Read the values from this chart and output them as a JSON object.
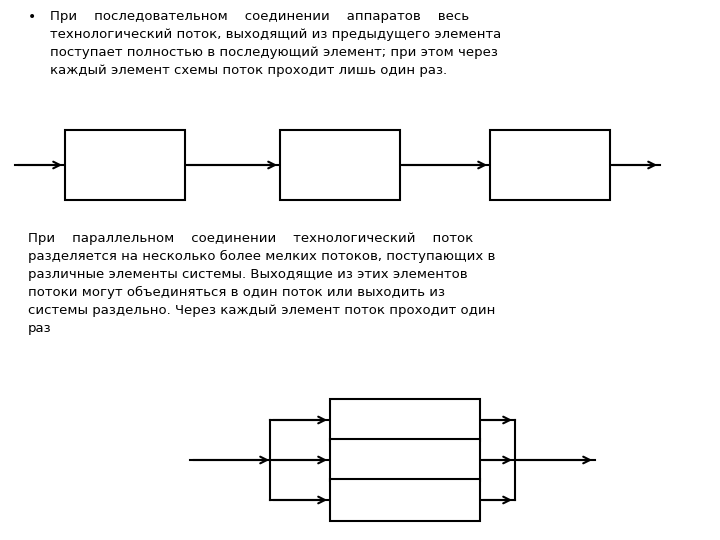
{
  "background_color": "#ffffff",
  "line_color": "#000000",
  "box_edge_color": "#000000",
  "box_face_color": "#ffffff",
  "fontsize_text": 9.5,
  "text1_line1": "При    последовательном    соединении    аппаратов    весь",
  "text1_line2": "технологический поток, выходящий из предыдущего элемента",
  "text1_line3": "поступает полностью в последующий элемент; при этом через",
  "text1_line4": "каждый элемент схемы поток проходит лишь один раз.",
  "text2_line1": "При    параллельном    соединении    технологический    поток",
  "text2_line2": "разделяется на несколько более мелких потоков, поступающих в",
  "text2_line3": "различные элементы системы. Выходящие из этих элементов",
  "text2_line4": "потоки могут объединяться в один поток или выходить из",
  "text2_line5": "системы раздельно. Через каждый элемент поток проходит один",
  "text2_line6": "раз"
}
